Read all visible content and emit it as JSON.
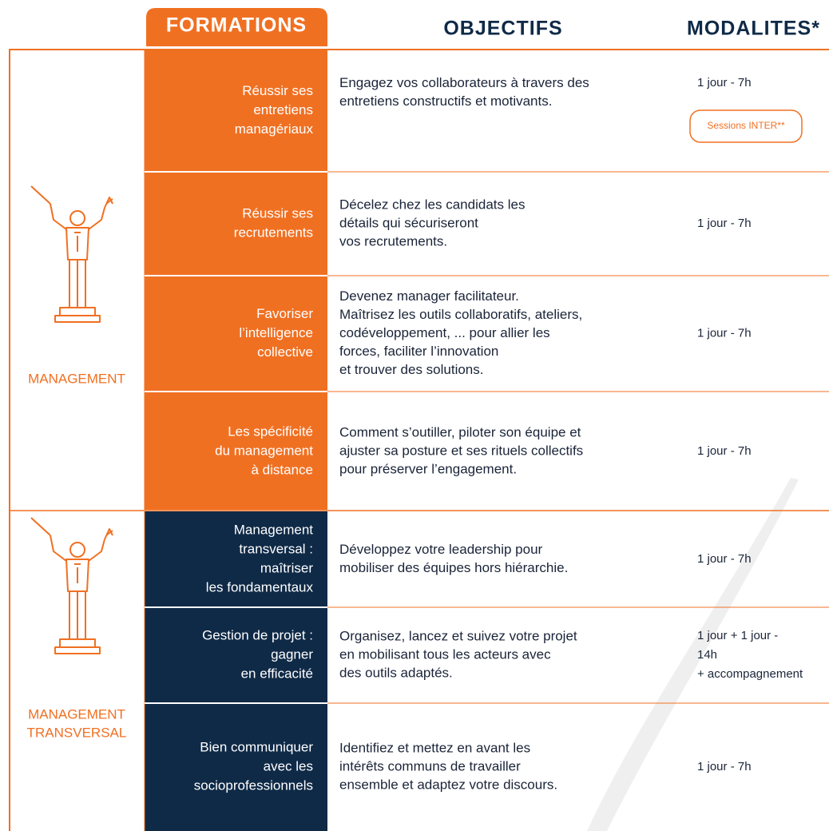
{
  "header": {
    "formations": "FORMATIONS",
    "objectifs": "OBJECTIFS",
    "modalites": "MODALITES*"
  },
  "groups": [
    {
      "label": [
        "MANAGEMENT"
      ],
      "rows": [
        {
          "formation": [
            "Réussir ses",
            "entretiens",
            "managériaux"
          ],
          "objectif": [
            "Engagez vos collaborateurs à travers des",
            "entretiens constructifs et motivants."
          ],
          "modalite": [
            "1 jour - 7h"
          ],
          "badge": "Sessions INTER**"
        },
        {
          "formation": [
            "Réussir ses",
            "recrutements"
          ],
          "objectif": [
            "Décelez chez les candidats les",
            "détails qui sécuriseront",
            "vos recrutements."
          ],
          "modalite": [
            "1 jour - 7h"
          ]
        },
        {
          "formation": [
            "Favoriser",
            "l’intelligence",
            "collective"
          ],
          "objectif": [
            "Devenez manager facilitateur.",
            "Maîtrisez les outils collaboratifs, ateliers,",
            "codéveloppement, ... pour allier les",
            "forces, faciliter l’innovation",
            "et trouver des solutions."
          ],
          "modalite": [
            "1 jour - 7h"
          ]
        },
        {
          "formation": [
            "Les spécificité",
            "du management",
            "à distance"
          ],
          "objectif": [
            "Comment s’outiller, piloter son équipe et",
            "ajuster sa posture et ses rituels collectifs",
            "pour préserver l’engagement."
          ],
          "modalite": [
            "1 jour - 7h"
          ]
        }
      ]
    },
    {
      "label": [
        "MANAGEMENT",
        "TRANSVERSAL"
      ],
      "rows": [
        {
          "formation": [
            "Management",
            "transversal  :",
            "maîtriser",
            "les fondamentaux"
          ],
          "objectif": [
            "Développez votre leadership pour",
            "mobiliser des équipes hors hiérarchie."
          ],
          "modalite": [
            "1 jour - 7h"
          ]
        },
        {
          "formation": [
            "Gestion de projet :",
            "gagner",
            "en efficacité"
          ],
          "objectif": [
            "Organisez, lancez et suivez votre projet",
            "en mobilisant tous les acteurs avec",
            "des outils adaptés."
          ],
          "modalite": [
            "1 jour + 1 jour -",
            "14h",
            "+ accompagnement"
          ]
        },
        {
          "formation": [
            "Bien communiquer",
            "avec les",
            "socioprofessionnels"
          ],
          "objectif": [
            "Identifiez et mettez en avant les",
            "intérêts communs de travailler",
            "ensemble et adaptez votre discours."
          ],
          "modalite": [
            "1 jour - 7h"
          ]
        }
      ]
    }
  ]
}
